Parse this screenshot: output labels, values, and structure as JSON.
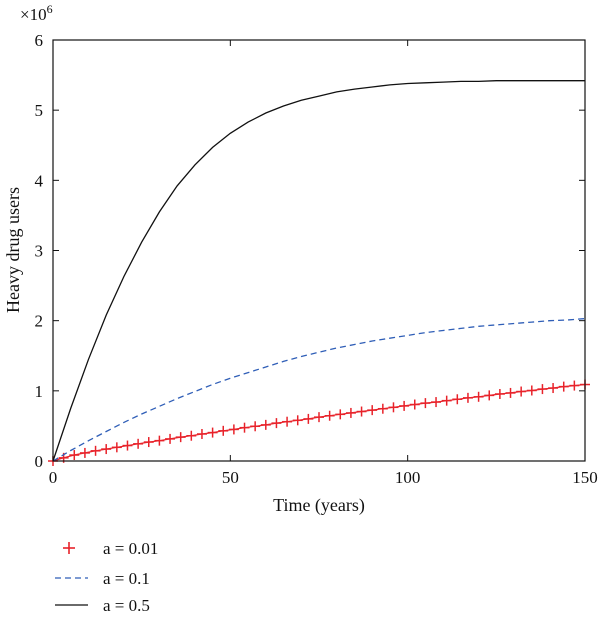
{
  "chart_data": {
    "type": "line",
    "title": "",
    "xlabel": "Time (years)",
    "ylabel": "Heavy drug users",
    "y_multiplier_label": "×10",
    "y_multiplier_exponent": "6",
    "xlim": [
      0,
      150
    ],
    "ylim": [
      0,
      6
    ],
    "x_ticks": [
      0,
      50,
      100,
      150
    ],
    "y_ticks": [
      0,
      1,
      2,
      3,
      4,
      5,
      6
    ],
    "grid": false,
    "legend_placement": "below",
    "series": [
      {
        "name": "a = 0.01",
        "style": "plus-markers",
        "color": "#e8222a",
        "x": [
          0,
          3,
          6,
          9,
          12,
          15,
          18,
          21,
          24,
          27,
          30,
          33,
          36,
          39,
          42,
          45,
          48,
          51,
          54,
          57,
          60,
          63,
          66,
          69,
          72,
          75,
          78,
          81,
          84,
          87,
          90,
          93,
          96,
          99,
          102,
          105,
          108,
          111,
          114,
          117,
          120,
          123,
          126,
          129,
          132,
          135,
          138,
          141,
          144,
          147,
          150
        ],
        "y": [
          0.0,
          0.045,
          0.085,
          0.115,
          0.145,
          0.17,
          0.195,
          0.22,
          0.245,
          0.27,
          0.29,
          0.315,
          0.34,
          0.36,
          0.385,
          0.405,
          0.43,
          0.45,
          0.475,
          0.495,
          0.515,
          0.54,
          0.56,
          0.58,
          0.6,
          0.625,
          0.645,
          0.665,
          0.685,
          0.705,
          0.725,
          0.745,
          0.765,
          0.785,
          0.805,
          0.825,
          0.84,
          0.86,
          0.88,
          0.9,
          0.915,
          0.935,
          0.955,
          0.97,
          0.99,
          1.005,
          1.025,
          1.04,
          1.06,
          1.075,
          1.09
        ]
      },
      {
        "name": "a = 0.1",
        "style": "dashed",
        "color": "#2f5eb7",
        "x": [
          0,
          5,
          10,
          15,
          20,
          25,
          30,
          35,
          40,
          45,
          50,
          55,
          60,
          65,
          70,
          75,
          80,
          85,
          90,
          95,
          100,
          105,
          110,
          115,
          120,
          125,
          130,
          135,
          140,
          145,
          150
        ],
        "y": [
          0.0,
          0.15,
          0.29,
          0.42,
          0.55,
          0.67,
          0.78,
          0.89,
          0.99,
          1.09,
          1.18,
          1.26,
          1.34,
          1.42,
          1.49,
          1.55,
          1.61,
          1.66,
          1.71,
          1.75,
          1.79,
          1.83,
          1.86,
          1.89,
          1.92,
          1.94,
          1.96,
          1.98,
          2.0,
          2.01,
          2.03
        ]
      },
      {
        "name": "a = 0.5",
        "style": "solid",
        "color": "#111111",
        "x": [
          0,
          5,
          10,
          15,
          20,
          25,
          30,
          35,
          40,
          45,
          50,
          55,
          60,
          65,
          70,
          75,
          80,
          85,
          90,
          95,
          100,
          105,
          110,
          115,
          120,
          125,
          130,
          135,
          140,
          145,
          150
        ],
        "y": [
          0.0,
          0.75,
          1.45,
          2.08,
          2.63,
          3.12,
          3.55,
          3.92,
          4.22,
          4.47,
          4.67,
          4.83,
          4.96,
          5.06,
          5.14,
          5.2,
          5.26,
          5.3,
          5.33,
          5.36,
          5.38,
          5.39,
          5.4,
          5.41,
          5.41,
          5.42,
          5.42,
          5.42,
          5.42,
          5.42,
          5.42
        ]
      }
    ]
  }
}
